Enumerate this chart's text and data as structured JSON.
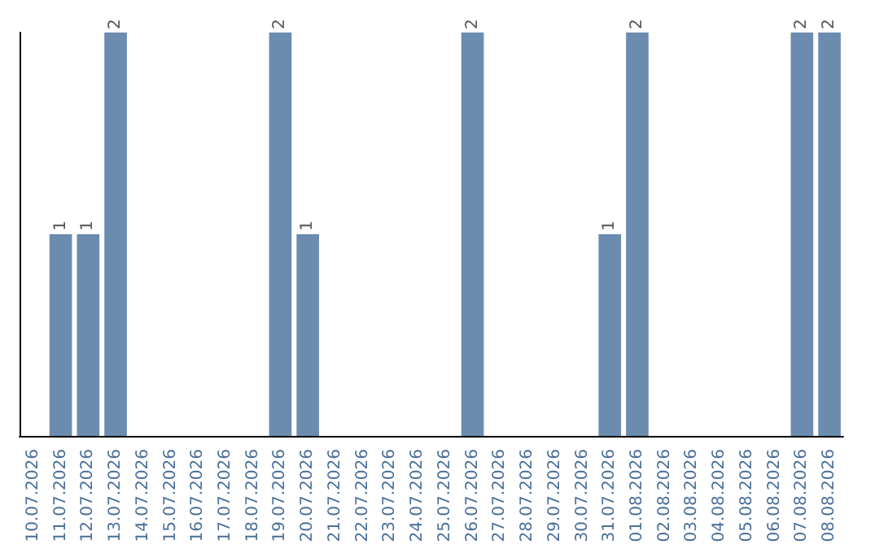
{
  "chart_data": {
    "type": "bar",
    "categories": [
      "10.07.2026",
      "11.07.2026",
      "12.07.2026",
      "13.07.2026",
      "14.07.2026",
      "15.07.2026",
      "16.07.2026",
      "17.07.2026",
      "18.07.2026",
      "19.07.2026",
      "20.07.2026",
      "21.07.2026",
      "22.07.2026",
      "23.07.2026",
      "24.07.2026",
      "25.07.2026",
      "26.07.2026",
      "27.07.2026",
      "28.07.2026",
      "29.07.2026",
      "30.07.2026",
      "31.07.2026",
      "01.08.2026",
      "02.08.2026",
      "03.08.2026",
      "04.08.2026",
      "05.08.2026",
      "06.08.2026",
      "07.08.2026",
      "08.08.2026"
    ],
    "values": [
      0,
      1,
      1,
      2,
      0,
      0,
      0,
      0,
      0,
      2,
      1,
      0,
      0,
      0,
      0,
      0,
      2,
      0,
      0,
      0,
      0,
      1,
      2,
      0,
      0,
      0,
      0,
      0,
      2,
      2
    ],
    "value_labels": [
      null,
      "1",
      "1",
      "2",
      null,
      null,
      null,
      null,
      null,
      "2",
      "1",
      null,
      null,
      null,
      null,
      null,
      "2",
      null,
      null,
      null,
      null,
      "1",
      "2",
      null,
      null,
      null,
      null,
      null,
      "2",
      "2"
    ],
    "color": "#6b8cae"
  }
}
